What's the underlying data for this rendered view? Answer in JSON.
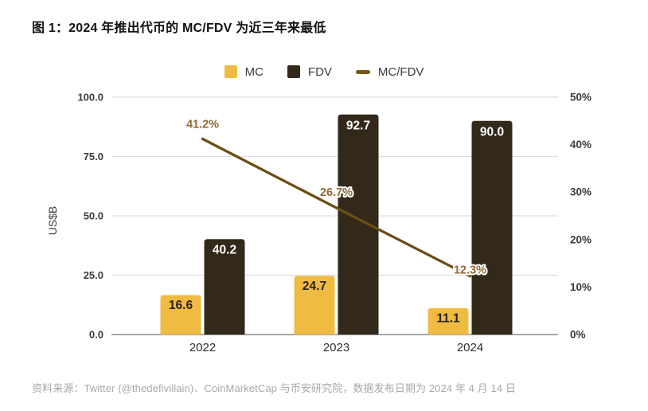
{
  "title": "图 1：2024 年推出代币的 MC/FDV 为近三年来最低",
  "source": "资料来源：Twitter (@thedefivillain)、CoinMarketCap 与币安研究院，数据发布日期为 2024 年 4 月 14 日",
  "colors": {
    "mc_bar": "#F0BB42",
    "fdv_bar": "#32291B",
    "line": "#6B4E13",
    "line_label": "#8E6B33",
    "grid": "#DFDFDF",
    "axis_line": "#8A8A8A",
    "tick_text": "#3C3C3C",
    "x_label_text": "#2F2F2F",
    "mc_value_text": "#2A2315",
    "fdv_value_text": "#FFFFFF"
  },
  "legend": {
    "items": [
      {
        "label": "MC",
        "swatch": "square",
        "color": "#F0BB42"
      },
      {
        "label": "FDV",
        "swatch": "square",
        "color": "#32291B"
      },
      {
        "label": "MC/FDV",
        "swatch": "line",
        "color": "#7A561B"
      }
    ]
  },
  "chart_data": {
    "type": "bar",
    "subtype": "grouped-bars-with-line",
    "title": "图 1：2024 年推出代币的 MC/FDV 为近三年来最低",
    "categories": [
      "2022",
      "2023",
      "2024"
    ],
    "series": [
      {
        "name": "MC",
        "type": "bar",
        "axis": "left",
        "values": [
          16.6,
          24.7,
          11.1
        ]
      },
      {
        "name": "FDV",
        "type": "bar",
        "axis": "left",
        "values": [
          40.2,
          92.7,
          90.0
        ]
      },
      {
        "name": "MC/FDV",
        "type": "line",
        "axis": "right",
        "unit": "%",
        "values": [
          41.2,
          26.7,
          12.3
        ]
      }
    ],
    "left_axis": {
      "label": "US$B",
      "min": 0,
      "max": 100,
      "tick_step": 25,
      "ticks": [
        "0.0",
        "25.0",
        "50.0",
        "75.0",
        "100.0"
      ]
    },
    "right_axis": {
      "label": "",
      "min": 0,
      "max": 50,
      "tick_step": 10,
      "ticks": [
        "0%",
        "10%",
        "20%",
        "30%",
        "40%",
        "50%"
      ]
    },
    "grid": "horizontal",
    "legend_position": "top",
    "data_labels": "inside-bar-top and above-line-points"
  }
}
